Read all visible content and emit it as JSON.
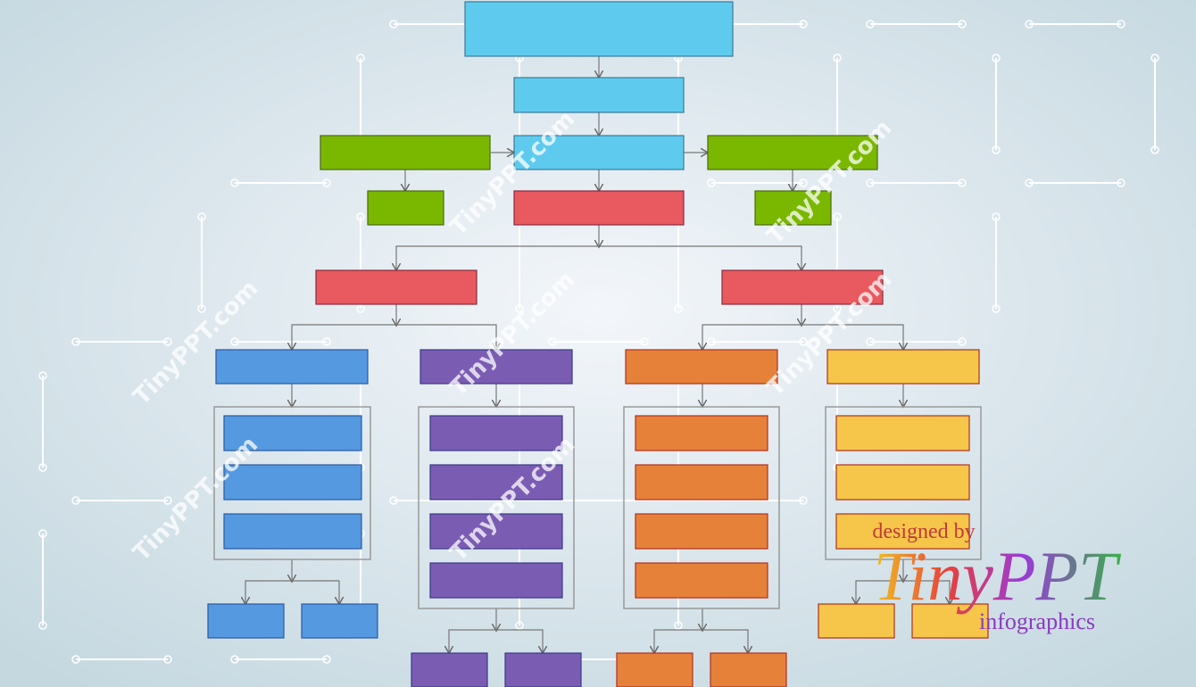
{
  "watermark": {
    "text": "TinyPPT.com"
  },
  "credit": {
    "designed_by": "designed by",
    "brand": "TinyPPT",
    "sub": "infographics"
  }
}
